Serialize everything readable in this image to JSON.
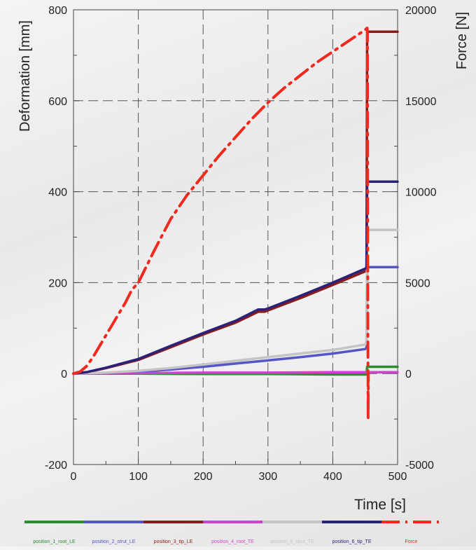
{
  "chart_data": {
    "type": "line",
    "xlabel": "Time [s]",
    "ylabel_left": "Deformation [mm]",
    "ylabel_right": "Force [N]",
    "xlim": [
      0,
      500
    ],
    "ylim_left": [
      -200,
      800
    ],
    "ylim_right": [
      -5000,
      20000
    ],
    "x_ticks": [
      "0",
      "100",
      "200",
      "300",
      "400",
      "500"
    ],
    "y_left_ticks": [
      "-200",
      "0",
      "200",
      "400",
      "600",
      "800"
    ],
    "y_right_ticks": [
      "-5000",
      "0",
      "5000",
      "10000",
      "15000",
      "20000"
    ],
    "grid": true,
    "legend_position": "bottom",
    "series": [
      {
        "name": "position_1_root_LE",
        "color": "#2e8b2e",
        "axis": "left",
        "dash": "solid",
        "x": [
          0,
          100,
          200,
          300,
          400,
          452,
          453,
          500
        ],
        "y": [
          0,
          0,
          -1,
          -1,
          -2,
          -2,
          15,
          15
        ]
      },
      {
        "name": "position_2_strut_LE",
        "color": "#5555c8",
        "axis": "left",
        "dash": "solid",
        "x": [
          0,
          50,
          100,
          150,
          200,
          250,
          300,
          350,
          400,
          450,
          452,
          453,
          500
        ],
        "y": [
          0,
          1,
          4,
          9,
          15,
          22,
          29,
          36,
          44,
          54,
          57,
          234,
          234
        ]
      },
      {
        "name": "position_3_tip_LE",
        "color": "#8b1a1a",
        "axis": "left",
        "dash": "solid",
        "x": [
          0,
          20,
          50,
          100,
          150,
          200,
          250,
          285,
          295,
          300,
          350,
          400,
          452,
          453,
          500
        ],
        "y": [
          0,
          3,
          12,
          30,
          58,
          86,
          112,
          136,
          136,
          139,
          166,
          195,
          226,
          752,
          752
        ]
      },
      {
        "name": "position_4_root_TE",
        "color": "#cc44cc",
        "axis": "left",
        "dash": "solid",
        "x": [
          0,
          100,
          200,
          300,
          400,
          452,
          453,
          500
        ],
        "y": [
          0,
          1,
          2,
          2,
          3,
          3,
          3,
          3
        ]
      },
      {
        "name": "position_5_strut_TE",
        "color": "#c4c4c4",
        "axis": "left",
        "dash": "solid",
        "x": [
          0,
          50,
          100,
          150,
          200,
          250,
          300,
          350,
          400,
          450,
          452,
          453,
          500
        ],
        "y": [
          0,
          2,
          6,
          12,
          20,
          28,
          36,
          44,
          52,
          64,
          68,
          316,
          316
        ]
      },
      {
        "name": "position_6_tip_TE",
        "color": "#2a2278",
        "axis": "left",
        "dash": "solid",
        "x": [
          0,
          20,
          50,
          100,
          150,
          200,
          250,
          285,
          295,
          300,
          350,
          400,
          452,
          453,
          500
        ],
        "y": [
          0,
          3,
          13,
          32,
          61,
          89,
          116,
          141,
          141,
          143,
          171,
          200,
          232,
          422,
          422
        ]
      },
      {
        "name": "Force",
        "color": "#ee2b1e",
        "axis": "right",
        "dash": "dashdot",
        "x": [
          0,
          10,
          20,
          30,
          40,
          50,
          60,
          70,
          80,
          90,
          100,
          125,
          150,
          175,
          200,
          225,
          250,
          275,
          300,
          325,
          350,
          375,
          400,
          425,
          450,
          453,
          453.5,
          454,
          454.5,
          455
        ],
        "y": [
          0,
          100,
          400,
          900,
          1500,
          2100,
          2700,
          3300,
          3900,
          4600,
          5000,
          6800,
          8500,
          9800,
          10900,
          12000,
          13000,
          14000,
          14900,
          15700,
          16400,
          17100,
          17700,
          18300,
          18900,
          19000,
          18800,
          5000,
          -2500,
          0
        ]
      }
    ]
  }
}
